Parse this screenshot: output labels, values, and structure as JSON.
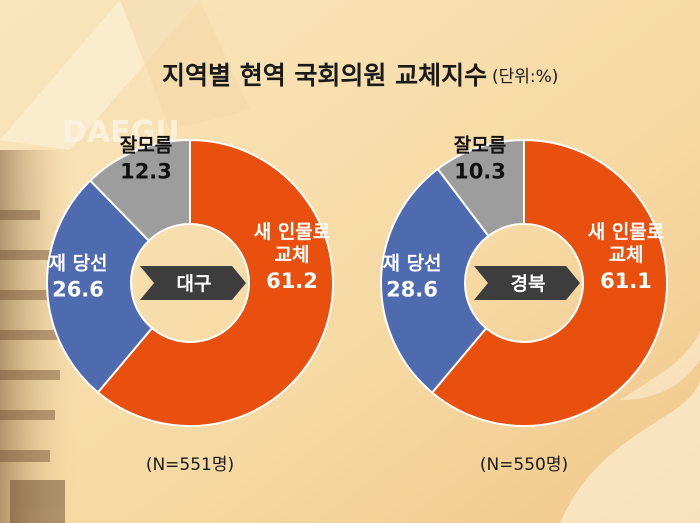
{
  "title": "지역별 현역 국회의원 교체지수",
  "unit": "(단위:%)",
  "background_mark": "DAEGU",
  "colors": {
    "replace": "#e9500e",
    "reelect": "#4f6bb0",
    "unknown": "#9d9d9d",
    "region_tag": "#3d3d3d",
    "bg_light": "#f7dfae",
    "bg_dark": "#efc487"
  },
  "chart_data": [
    {
      "type": "pie",
      "region": "대구",
      "note": "(N=551명)",
      "slices": [
        {
          "label_lines": [
            "새 인물로",
            "교체"
          ],
          "value": 61.2,
          "value_text": "61.2",
          "color": "#e9500e"
        },
        {
          "label_lines": [
            "재 당선"
          ],
          "value": 26.6,
          "value_text": "26.6",
          "color": "#4f6bb0"
        },
        {
          "label_lines": [
            "잘모름"
          ],
          "value": 12.3,
          "value_text": "12.3",
          "color": "#9d9d9d"
        }
      ]
    },
    {
      "type": "pie",
      "region": "경북",
      "note": "(N=550명)",
      "slices": [
        {
          "label_lines": [
            "새 인물로",
            "교체"
          ],
          "value": 61.1,
          "value_text": "61.1",
          "color": "#e9500e"
        },
        {
          "label_lines": [
            "재 당선"
          ],
          "value": 28.6,
          "value_text": "28.6",
          "color": "#4f6bb0"
        },
        {
          "label_lines": [
            "잘모름"
          ],
          "value": 10.3,
          "value_text": "10.3",
          "color": "#9d9d9d"
        }
      ]
    }
  ]
}
